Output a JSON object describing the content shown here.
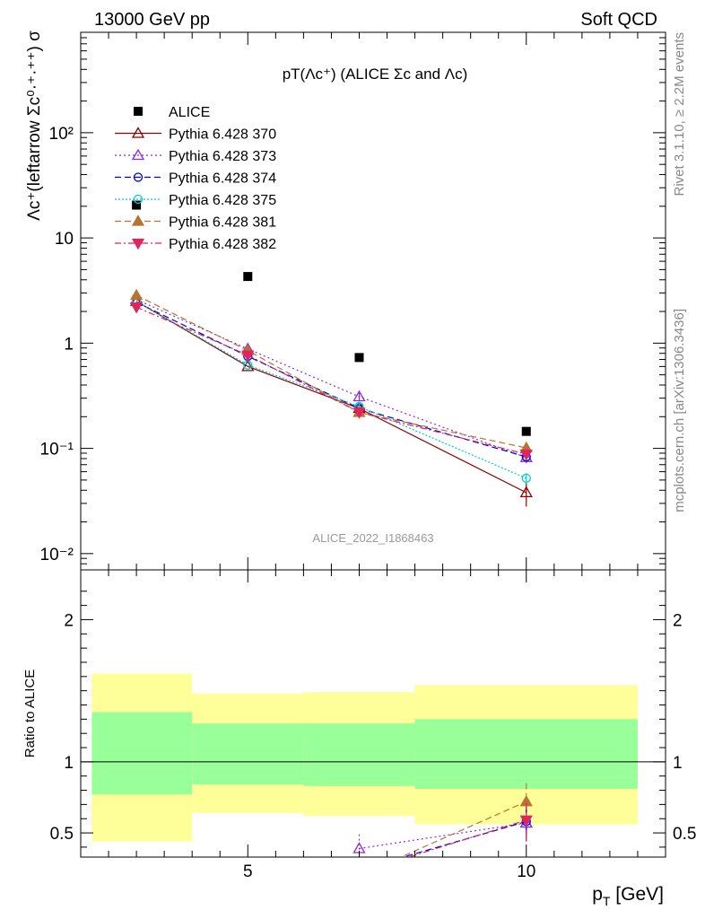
{
  "header": {
    "left": "13000 GeV pp",
    "right": "Soft QCD"
  },
  "side_labels": {
    "rivet": "Rivet 3.1.10, ≥ 2.2M events",
    "mcplots": "mcplots.cern.ch [arXiv:1306.3436]"
  },
  "chart_data": [
    {
      "type": "line",
      "title": "pT(Λc⁺) (ALICE Σc and Λc)",
      "ylabel": "Λc⁺(leftarrow Σc⁰·⁺·⁺⁺) σ",
      "ylog": true,
      "ylim": [
        0.007,
        900
      ],
      "xlim": [
        2,
        12.5
      ],
      "y_tick_labels": [
        "10⁻²",
        "10⁻¹",
        "1",
        "10",
        "10²"
      ],
      "watermark": "ALICE_2022_I1868463",
      "legend": "top-left",
      "data_series": {
        "name": "ALICE",
        "x": [
          3,
          5,
          7,
          10
        ],
        "y": [
          20.5,
          4.3,
          0.73,
          0.145
        ]
      },
      "series": [
        {
          "name": "Pythia 6.428 370",
          "color": "#8b0000",
          "marker": "triangle-up-open",
          "dash": "",
          "x": [
            3,
            5,
            7,
            10
          ],
          "y": [
            2.5,
            0.6,
            0.24,
            0.038
          ],
          "err": [
            0,
            0,
            0.02,
            0.01
          ]
        },
        {
          "name": "Pythia 6.428 373",
          "color": "#8a2be2",
          "marker": "triangle-up-open",
          "dash": "2,3",
          "x": [
            3,
            5,
            7,
            10
          ],
          "y": [
            2.6,
            0.88,
            0.31,
            0.082
          ],
          "err": [
            0,
            0,
            0.03,
            0.01
          ]
        },
        {
          "name": "Pythia 6.428 374",
          "color": "#0000dd",
          "marker": "circle-open",
          "dash": "7,4",
          "x": [
            3,
            5,
            7,
            10
          ],
          "y": [
            2.45,
            0.75,
            0.24,
            0.083
          ],
          "err": [
            0,
            0,
            0.02,
            0.008
          ]
        },
        {
          "name": "Pythia 6.428 375",
          "color": "#00cccc",
          "marker": "circle-open",
          "dash": "2,2",
          "x": [
            3,
            5,
            7,
            10
          ],
          "y": [
            2.5,
            0.62,
            0.25,
            0.052
          ],
          "err": [
            0,
            0,
            0.02,
            0.006
          ]
        },
        {
          "name": "Pythia 6.428 381",
          "color": "#b87333",
          "marker": "triangle-up-filled",
          "dash": "7,4",
          "x": [
            3,
            5,
            7,
            10
          ],
          "y": [
            2.85,
            0.85,
            0.22,
            0.101
          ],
          "err": [
            0,
            0,
            0.02,
            0.012
          ]
        },
        {
          "name": "Pythia 6.428 382",
          "color": "#e0245e",
          "marker": "triangle-down-filled",
          "dash": "7,3,2,3",
          "x": [
            3,
            5,
            7,
            10
          ],
          "y": [
            2.2,
            0.77,
            0.22,
            0.088
          ],
          "err": [
            0,
            0,
            0.02,
            0.01
          ]
        }
      ]
    },
    {
      "type": "line",
      "ylabel": "Ratio to ALICE",
      "xlabel": "p_T [GeV]",
      "xlabel_main": "p",
      "xlabel_sub": "T",
      "xlabel_tail": " [GeV]",
      "ylim": [
        0.33,
        2.35
      ],
      "xlim": [
        2,
        12.5
      ],
      "x_ticks": [
        5,
        10
      ],
      "y_ticks": [
        0.5,
        1,
        2
      ],
      "bands": [
        {
          "x": [
            2.2,
            4
          ],
          "yellow": [
            0.44,
            1.62
          ],
          "green": [
            0.77,
            1.35
          ]
        },
        {
          "x": [
            4,
            6
          ],
          "yellow": [
            0.64,
            1.48
          ],
          "green": [
            0.84,
            1.27
          ]
        },
        {
          "x": [
            6,
            8
          ],
          "yellow": [
            0.62,
            1.49
          ],
          "green": [
            0.83,
            1.27
          ]
        },
        {
          "x": [
            8,
            12.0
          ],
          "yellow": [
            0.56,
            1.54
          ],
          "green": [
            0.81,
            1.3
          ]
        }
      ],
      "series": [
        {
          "name": "Pythia 6.428 370",
          "x": [
            10
          ],
          "y": [
            0.57
          ],
          "err": [
            0.13
          ]
        },
        {
          "name": "Pythia 6.428 373",
          "x": [
            7,
            10
          ],
          "y": [
            0.39,
            0.57
          ],
          "err": [
            0.1,
            0.12
          ]
        },
        {
          "name": "Pythia 6.428 374",
          "x": [
            7,
            10
          ],
          "y": [
            0.24,
            0.58
          ],
          "err": [
            0.05,
            0.1
          ]
        },
        {
          "name": "Pythia 6.428 381",
          "x": [
            7,
            10
          ],
          "y": [
            0.2,
            0.72
          ],
          "err": [
            0.05,
            0.13
          ]
        },
        {
          "name": "Pythia 6.428 382",
          "x": [
            7,
            10
          ],
          "y": [
            0.22,
            0.59
          ],
          "err": [
            0.05,
            0.12
          ]
        }
      ]
    }
  ]
}
